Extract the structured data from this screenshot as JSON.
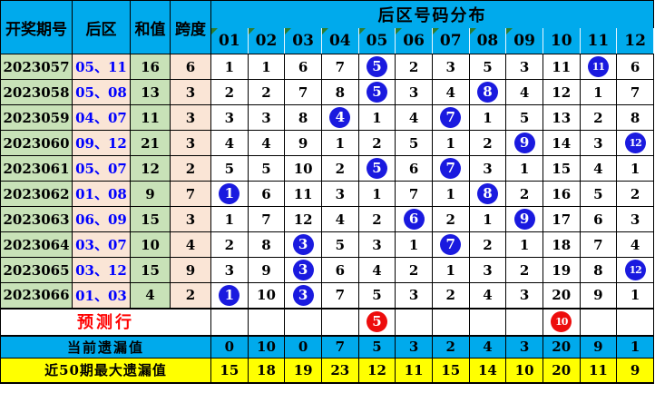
{
  "chart_data": {
    "type": "table",
    "title": "后区号码分布",
    "left_headers": {
      "period": "开奖期号",
      "rear": "后区",
      "sum": "和值",
      "span": "跨度"
    },
    "number_columns": [
      "01",
      "02",
      "03",
      "04",
      "05",
      "06",
      "07",
      "08",
      "09",
      "10",
      "11",
      "12"
    ],
    "flagged_columns": [
      "01",
      "02",
      "03",
      "04",
      "05",
      "06",
      "07",
      "08",
      "09"
    ],
    "rows": [
      {
        "period": "2023057",
        "rear": "05、11",
        "sum": "16",
        "span": "6",
        "miss_values": [
          1,
          1,
          6,
          7,
          5,
          2,
          3,
          5,
          3,
          11,
          11,
          6
        ],
        "hit_columns": [
          5,
          11
        ]
      },
      {
        "period": "2023058",
        "rear": "05、08",
        "sum": "13",
        "span": "3",
        "miss_values": [
          2,
          2,
          7,
          8,
          5,
          3,
          4,
          8,
          4,
          12,
          1,
          7
        ],
        "hit_columns": [
          5,
          8
        ]
      },
      {
        "period": "2023059",
        "rear": "04、07",
        "sum": "11",
        "span": "3",
        "miss_values": [
          3,
          3,
          8,
          4,
          1,
          4,
          7,
          1,
          5,
          13,
          2,
          8
        ],
        "hit_columns": [
          4,
          7
        ]
      },
      {
        "period": "2023060",
        "rear": "09、12",
        "sum": "21",
        "span": "3",
        "miss_values": [
          4,
          4,
          9,
          1,
          2,
          5,
          1,
          2,
          9,
          14,
          3,
          12
        ],
        "hit_columns": [
          9,
          12
        ]
      },
      {
        "period": "2023061",
        "rear": "05、07",
        "sum": "12",
        "span": "2",
        "miss_values": [
          5,
          5,
          10,
          2,
          5,
          6,
          7,
          3,
          1,
          15,
          4,
          1
        ],
        "hit_columns": [
          5,
          7
        ]
      },
      {
        "period": "2023062",
        "rear": "01、08",
        "sum": "9",
        "span": "7",
        "miss_values": [
          1,
          6,
          11,
          3,
          1,
          7,
          1,
          8,
          2,
          16,
          5,
          2
        ],
        "hit_columns": [
          1,
          8
        ]
      },
      {
        "period": "2023063",
        "rear": "06、09",
        "sum": "15",
        "span": "3",
        "miss_values": [
          1,
          7,
          12,
          4,
          2,
          6,
          2,
          1,
          9,
          17,
          6,
          3
        ],
        "hit_columns": [
          6,
          9
        ]
      },
      {
        "period": "2023064",
        "rear": "03、07",
        "sum": "10",
        "span": "4",
        "miss_values": [
          2,
          8,
          3,
          5,
          3,
          1,
          7,
          2,
          1,
          18,
          7,
          4
        ],
        "hit_columns": [
          3,
          7
        ]
      },
      {
        "period": "2023065",
        "rear": "03、12",
        "sum": "15",
        "span": "9",
        "miss_values": [
          3,
          9,
          3,
          6,
          4,
          2,
          1,
          3,
          2,
          19,
          8,
          12
        ],
        "hit_columns": [
          3,
          12
        ]
      },
      {
        "period": "2023066",
        "rear": "01、03",
        "sum": "4",
        "span": "2",
        "miss_values": [
          1,
          10,
          3,
          7,
          5,
          3,
          2,
          4,
          3,
          20,
          9,
          1
        ],
        "hit_columns": [
          1,
          3
        ]
      }
    ],
    "prediction_row": {
      "label": "预测行",
      "hit_columns": [
        5,
        10
      ],
      "hit_labels": [
        "5",
        "10"
      ]
    },
    "current_miss_row": {
      "label": "当前遗漏值",
      "values": [
        0,
        10,
        0,
        7,
        5,
        3,
        2,
        4,
        3,
        20,
        9,
        1
      ]
    },
    "max_miss_row": {
      "label": "近50期最大遗漏值",
      "values": [
        15,
        18,
        19,
        23,
        12,
        11,
        15,
        14,
        10,
        20,
        11,
        9
      ]
    },
    "colors": {
      "header_blue": "#00AAEC",
      "cell_green": "#C8E2B8",
      "cell_peach": "#FAE5D6",
      "footer_yellow": "#FFFF00",
      "ball_blue": "#1A1ADF",
      "ball_red": "#ED0D0D",
      "prediction_text_red": "#FF0000",
      "rear_text_blue": "#0000FF",
      "flag_triangle_green": "#2E7D2E"
    },
    "layout": {
      "grid": true,
      "legend": "none"
    }
  }
}
